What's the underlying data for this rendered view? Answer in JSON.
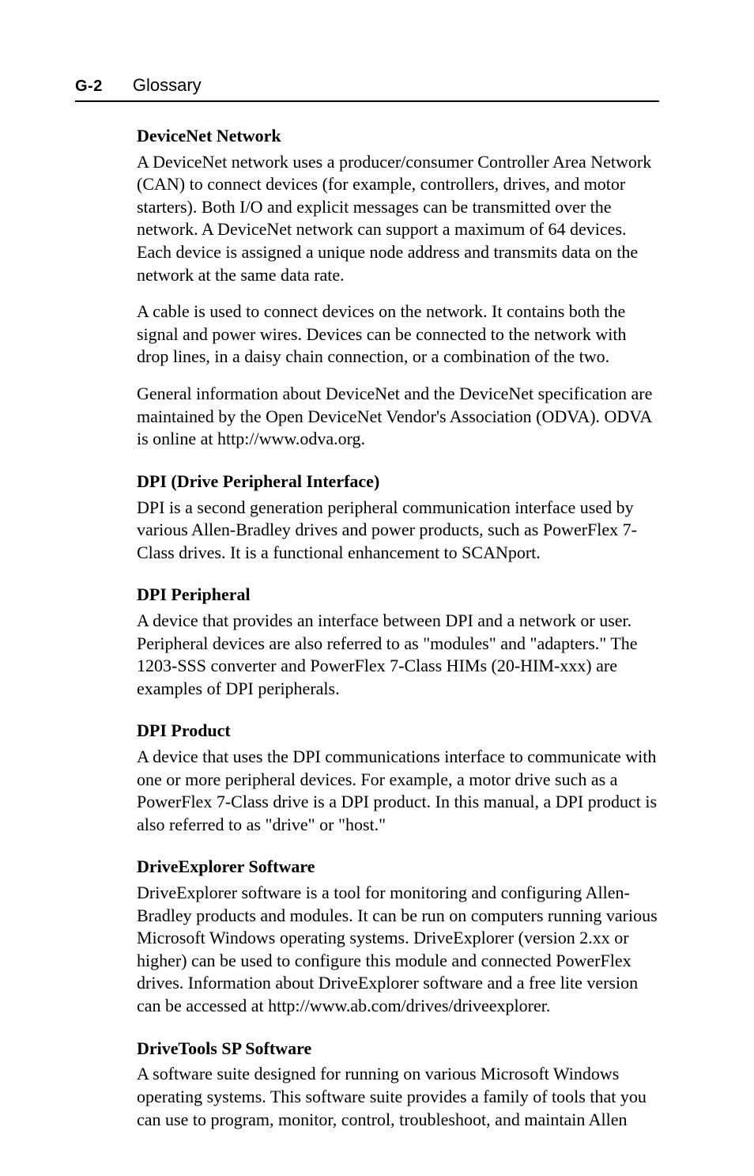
{
  "header": {
    "page_number": "G-2",
    "section": "Glossary"
  },
  "entries": [
    {
      "term": "DeviceNet Network",
      "paragraphs": [
        "A DeviceNet network uses a producer/consumer Controller Area Network (CAN) to connect devices (for example, controllers, drives, and motor starters). Both I/O and explicit messages can be transmitted over the network. A DeviceNet network can support a maximum of 64 devices. Each device is assigned a unique node address and transmits data on the network at the same data rate.",
        "A cable is used to connect devices on the network. It contains both the signal and power wires. Devices can be connected to the network with drop lines, in a daisy chain connection, or a combination of the two.",
        "General information about DeviceNet and the DeviceNet specification are maintained by the Open DeviceNet Vendor's Association (ODVA). ODVA is online at http://www.odva.org."
      ]
    },
    {
      "term": "DPI (Drive Peripheral Interface)",
      "paragraphs": [
        "DPI is a second generation peripheral communication interface used by various Allen-Bradley drives and power products, such as PowerFlex 7-Class drives. It is a functional enhancement to SCANport."
      ]
    },
    {
      "term": "DPI Peripheral",
      "paragraphs": [
        "A device that provides an interface between DPI and a network or user. Peripheral devices are also referred to as \"modules\" and \"adapters.\" The 1203-SSS converter and PowerFlex 7-Class HIMs (20-HIM-xxx) are examples of DPI peripherals."
      ]
    },
    {
      "term": "DPI Product",
      "paragraphs": [
        "A device that uses the DPI communications interface to communicate with one or more peripheral devices. For example, a motor drive such as a PowerFlex 7-Class drive is a DPI product. In this manual, a DPI product is also referred to as \"drive\" or \"host.\""
      ]
    },
    {
      "term": "DriveExplorer Software",
      "paragraphs": [
        "DriveExplorer software is a tool for monitoring and configuring Allen-Bradley products and modules. It can be run on computers running various Microsoft Windows operating systems. DriveExplorer (version 2.xx or higher) can be used to configure this module and connected PowerFlex drives. Information about DriveExplorer software and a free lite version can be accessed at http://www.ab.com/drives/driveexplorer."
      ]
    },
    {
      "term": "DriveTools SP Software",
      "paragraphs": [
        "A software suite designed for running on various Microsoft Windows operating systems. This software suite provides a family of tools that you can use to program, monitor, control, troubleshoot, and maintain Allen"
      ]
    }
  ]
}
